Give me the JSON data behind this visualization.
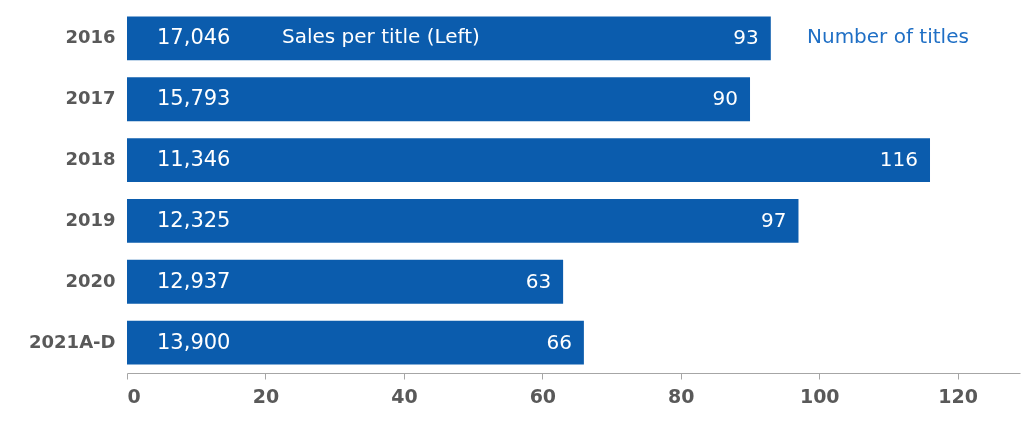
{
  "chart_data": {
    "type": "bar",
    "orientation": "horizontal",
    "categories": [
      "2016",
      "2017",
      "2018",
      "2019",
      "2020",
      "2021A-D"
    ],
    "series": [
      {
        "color": "#0b5cad",
        "values": [
          93,
          90,
          116,
          97,
          63,
          66
        ]
      }
    ],
    "data_labels": true,
    "xlim": [
      0,
      129
    ],
    "xticks": [
      0,
      20,
      40,
      60,
      80,
      100,
      120
    ],
    "grid": false,
    "annotations": [
      {
        "text": "17,046",
        "y": "2016"
      },
      {
        "text": "15,793",
        "y": "2017"
      },
      {
        "text": "11,346",
        "y": "2018"
      },
      {
        "text": "12,325",
        "y": "2019"
      },
      {
        "text": "12,937",
        "y": "2020"
      },
      {
        "text": "13,900",
        "y": "2021A-D"
      },
      "Sales per title (Left)",
      "Number of titles"
    ]
  }
}
